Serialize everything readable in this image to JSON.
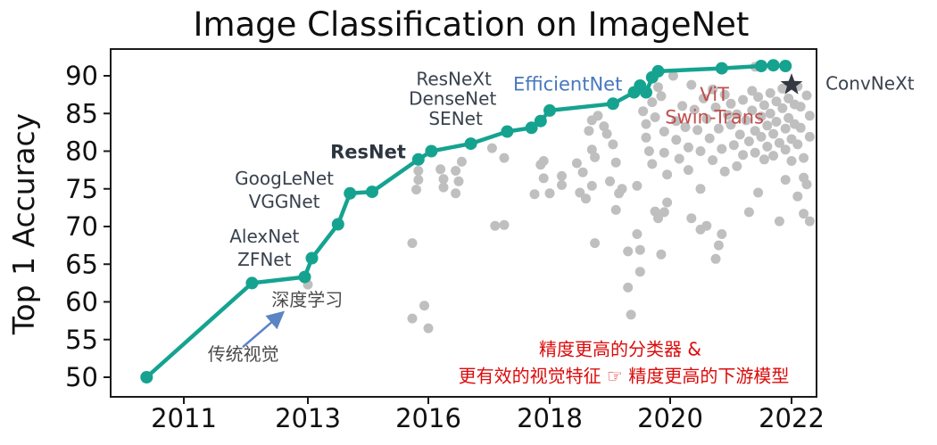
{
  "chart_data": {
    "type": "scatter",
    "title": "Image Classification on ImageNet",
    "ylabel": "Top 1 Accuracy",
    "xlabel": "",
    "grid": false,
    "legend": "none",
    "x_axis": {
      "tick_labels": [
        "2011",
        "2013",
        "2016",
        "2018",
        "2020",
        "2022"
      ],
      "tick_years": [
        2011,
        2013,
        2016,
        2018,
        2020,
        2022
      ]
    },
    "y_axis": {
      "tick_values": [
        50,
        55,
        60,
        65,
        70,
        75,
        80,
        85,
        90
      ],
      "tick_labels": [
        "50",
        "55",
        "60",
        "65",
        "70",
        "75",
        "80",
        "85",
        "90"
      ],
      "ylim": [
        47.5,
        93.5
      ]
    },
    "colors": {
      "line": "#15A390",
      "scatter": "#BFBFBF",
      "star": "#333842",
      "ink": "#1a1a1a",
      "label_dark": "#39424E",
      "blue": "#4878BE",
      "brick": "#C0504D",
      "red": "#DC0B0B",
      "annot_gray": "#4A4A4A",
      "arrow": "#5B84C4"
    },
    "milestone_line": {
      "name": "milestone-models-line",
      "points": [
        [
          2010.4,
          50.0
        ],
        [
          2012.1,
          62.5
        ],
        [
          2012.95,
          63.3
        ],
        [
          2013.1,
          65.8
        ],
        [
          2013.75,
          70.3
        ],
        [
          2014.05,
          74.4
        ],
        [
          2014.6,
          74.6
        ],
        [
          2015.75,
          78.9
        ],
        [
          2016.05,
          80.0
        ],
        [
          2016.7,
          81.0
        ],
        [
          2017.3,
          82.6
        ],
        [
          2017.7,
          83.1
        ],
        [
          2017.85,
          84.0
        ],
        [
          2018.0,
          85.4
        ],
        [
          2019.05,
          86.3
        ],
        [
          2019.4,
          87.8
        ],
        [
          2019.5,
          88.7
        ],
        [
          2019.6,
          87.8
        ],
        [
          2019.7,
          89.8
        ],
        [
          2019.8,
          90.6
        ],
        [
          2020.85,
          91.0
        ],
        [
          2021.5,
          91.3
        ],
        [
          2021.7,
          91.4
        ],
        [
          2021.9,
          91.3
        ]
      ]
    },
    "star_point": {
      "label": "ConvNeXt",
      "year": 2022.0,
      "top1": 88.8
    },
    "scatter_points": [
      [
        2013.0,
        62.3
      ],
      [
        2015.6,
        67.8
      ],
      [
        2015.6,
        57.8
      ],
      [
        2015.9,
        59.5
      ],
      [
        2016.0,
        56.5
      ],
      [
        2015.75,
        77.4
      ],
      [
        2015.75,
        76.2
      ],
      [
        2015.7,
        74.9
      ],
      [
        2016.2,
        77.6
      ],
      [
        2016.25,
        76.3
      ],
      [
        2016.25,
        75.2
      ],
      [
        2016.45,
        77.4
      ],
      [
        2016.5,
        76.0
      ],
      [
        2016.45,
        74.4
      ],
      [
        2016.55,
        78.6
      ],
      [
        2017.05,
        80.4
      ],
      [
        2017.1,
        70.1
      ],
      [
        2017.25,
        70.2
      ],
      [
        2017.25,
        79.1
      ],
      [
        2017.75,
        74.3
      ],
      [
        2017.85,
        78.2
      ],
      [
        2017.9,
        78.7
      ],
      [
        2017.9,
        76.4
      ],
      [
        2018.0,
        74.4
      ],
      [
        2018.2,
        76.7
      ],
      [
        2018.2,
        75.5
      ],
      [
        2018.45,
        78.4
      ],
      [
        2018.5,
        74.5
      ],
      [
        2018.55,
        77.2
      ],
      [
        2018.6,
        73.7
      ],
      [
        2018.65,
        82.7
      ],
      [
        2018.7,
        80.2
      ],
      [
        2018.7,
        75.4
      ],
      [
        2018.75,
        79.2
      ],
      [
        2018.7,
        84.1
      ],
      [
        2018.8,
        84.7
      ],
      [
        2018.9,
        83.3
      ],
      [
        2018.95,
        82.3
      ],
      [
        2018.75,
        67.8
      ],
      [
        2019.0,
        76.0
      ],
      [
        2019.05,
        80.9
      ],
      [
        2019.1,
        78.5
      ],
      [
        2019.1,
        72.2
      ],
      [
        2019.15,
        74.4
      ],
      [
        2019.2,
        75.0
      ],
      [
        2019.3,
        66.7
      ],
      [
        2019.3,
        61.9
      ],
      [
        2019.35,
        58.3
      ],
      [
        2019.45,
        75.4
      ],
      [
        2019.45,
        69.0
      ],
      [
        2019.5,
        66.9
      ],
      [
        2019.5,
        64.0
      ],
      [
        2019.55,
        85.3
      ],
      [
        2019.6,
        83.6
      ],
      [
        2019.6,
        81.8
      ],
      [
        2019.65,
        80.0
      ],
      [
        2019.7,
        78.3
      ],
      [
        2019.7,
        86.5
      ],
      [
        2019.75,
        84.5
      ],
      [
        2019.8,
        88.5
      ],
      [
        2019.85,
        87.3
      ],
      [
        2019.85,
        66.3
      ],
      [
        2019.9,
        82.6
      ],
      [
        2019.9,
        79.8
      ],
      [
        2019.95,
        76.9
      ],
      [
        2019.95,
        73.2
      ],
      [
        2019.9,
        71.9
      ],
      [
        2019.8,
        71.1
      ],
      [
        2019.75,
        72.0
      ],
      [
        2020.05,
        90.0
      ],
      [
        2020.1,
        84.0
      ],
      [
        2020.1,
        81.5
      ],
      [
        2020.15,
        79.0
      ],
      [
        2020.2,
        86.0
      ],
      [
        2020.25,
        83.2
      ],
      [
        2020.3,
        80.5
      ],
      [
        2020.3,
        77.5
      ],
      [
        2020.35,
        88.8
      ],
      [
        2020.4,
        85.5
      ],
      [
        2020.45,
        82.8
      ],
      [
        2020.5,
        80.0
      ],
      [
        2020.5,
        75.0
      ],
      [
        2020.55,
        87.0
      ],
      [
        2020.6,
        84.3
      ],
      [
        2020.65,
        81.7
      ],
      [
        2020.7,
        78.8
      ],
      [
        2020.7,
        88.2
      ],
      [
        2020.75,
        85.8
      ],
      [
        2020.75,
        65.7
      ],
      [
        2020.8,
        67.5
      ],
      [
        2020.8,
        83.0
      ],
      [
        2020.85,
        80.3
      ],
      [
        2020.9,
        77.3
      ],
      [
        2020.9,
        87.5
      ],
      [
        2020.95,
        84.8
      ],
      [
        2020.35,
        71.1
      ],
      [
        2020.5,
        69.6
      ],
      [
        2020.6,
        70.1
      ],
      [
        2020.85,
        69.0
      ],
      [
        2021.0,
        86.3
      ],
      [
        2021.0,
        83.5
      ],
      [
        2021.05,
        80.8
      ],
      [
        2021.1,
        78.0
      ],
      [
        2021.1,
        84.9
      ],
      [
        2021.15,
        82.2
      ],
      [
        2021.2,
        79.5
      ],
      [
        2021.2,
        86.8
      ],
      [
        2021.25,
        84.1
      ],
      [
        2021.3,
        81.3
      ],
      [
        2021.3,
        71.9
      ],
      [
        2021.35,
        88.0
      ],
      [
        2021.35,
        85.4
      ],
      [
        2021.4,
        82.7
      ],
      [
        2021.4,
        79.8
      ],
      [
        2021.4,
        91.2
      ],
      [
        2021.45,
        87.2
      ],
      [
        2021.45,
        74.5
      ],
      [
        2021.5,
        84.6
      ],
      [
        2021.5,
        81.9
      ],
      [
        2021.55,
        78.9
      ],
      [
        2021.55,
        86.1
      ],
      [
        2021.6,
        83.4
      ],
      [
        2021.6,
        80.6
      ],
      [
        2021.65,
        87.7
      ],
      [
        2021.65,
        85.0
      ],
      [
        2021.7,
        82.3
      ],
      [
        2021.7,
        79.4
      ],
      [
        2021.75,
        86.6
      ],
      [
        2021.75,
        83.9
      ],
      [
        2021.8,
        81.1
      ],
      [
        2021.8,
        70.7
      ],
      [
        2021.85,
        88.3
      ],
      [
        2021.85,
        85.7
      ],
      [
        2021.9,
        83.0
      ],
      [
        2021.9,
        80.2
      ],
      [
        2021.9,
        76.2
      ],
      [
        2021.95,
        87.0
      ],
      [
        2021.95,
        84.4
      ],
      [
        2022.0,
        81.6
      ],
      [
        2022.0,
        78.7
      ],
      [
        2022.05,
        86.2
      ],
      [
        2022.05,
        83.6
      ],
      [
        2022.1,
        80.9
      ],
      [
        2022.1,
        88.6
      ],
      [
        2022.1,
        74.0
      ],
      [
        2022.15,
        85.9
      ],
      [
        2022.15,
        83.1
      ],
      [
        2022.2,
        79.1
      ],
      [
        2022.2,
        71.7
      ],
      [
        2022.2,
        76.5
      ],
      [
        2022.25,
        75.6
      ],
      [
        2022.25,
        87.4
      ],
      [
        2022.3,
        84.7
      ],
      [
        2022.3,
        81.9
      ],
      [
        2022.3,
        70.7
      ]
    ],
    "annotations": [
      {
        "text": "AlexNet",
        "x": 2012.3,
        "y": 68.7,
        "style": "dark"
      },
      {
        "text": "ZFNet",
        "x": 2012.3,
        "y": 65.6,
        "style": "dark"
      },
      {
        "text": "GoogLeNet",
        "x": 2012.62,
        "y": 76.4,
        "style": "dark"
      },
      {
        "text": "VGGNet",
        "x": 2012.62,
        "y": 73.3,
        "style": "dark"
      },
      {
        "text": "ResNet",
        "x": 2014.5,
        "y": 79.9,
        "style": "dark-bold"
      },
      {
        "text": "ResNeXt",
        "x": 2016.42,
        "y": 89.6,
        "style": "dark"
      },
      {
        "text": "DenseNet",
        "x": 2016.4,
        "y": 87.0,
        "style": "dark"
      },
      {
        "text": "SENet",
        "x": 2016.45,
        "y": 84.3,
        "style": "dark"
      },
      {
        "text": "EfficientNet",
        "x": 2018.3,
        "y": 88.9,
        "style": "blue"
      },
      {
        "text": "ViT",
        "x": 2020.73,
        "y": 87.5,
        "style": "brick"
      },
      {
        "text": "Swin-Trans",
        "x": 2020.73,
        "y": 84.5,
        "style": "brick"
      },
      {
        "text": "ConvNeXt",
        "x": 2022.56,
        "y": 89.0,
        "style": "dark",
        "anchor": "start"
      },
      {
        "text": "深度学习",
        "x": 2012.99,
        "y": 60.3,
        "style": "gray"
      },
      {
        "text": "传统视觉",
        "x": 2011.96,
        "y": 53.1,
        "style": "gray"
      },
      {
        "text": "精度更高的分类器 &",
        "x": 2019.17,
        "y": 53.7,
        "style": "red"
      },
      {
        "text": "更有效的视觉特征 ☞ 精度更高的下游模型",
        "x": 2019.23,
        "y": 50.2,
        "style": "red"
      }
    ],
    "arrow": {
      "from": {
        "x": 2011.95,
        "y": 54.0
      },
      "to": {
        "x": 2012.6,
        "y": 58.6
      }
    }
  }
}
